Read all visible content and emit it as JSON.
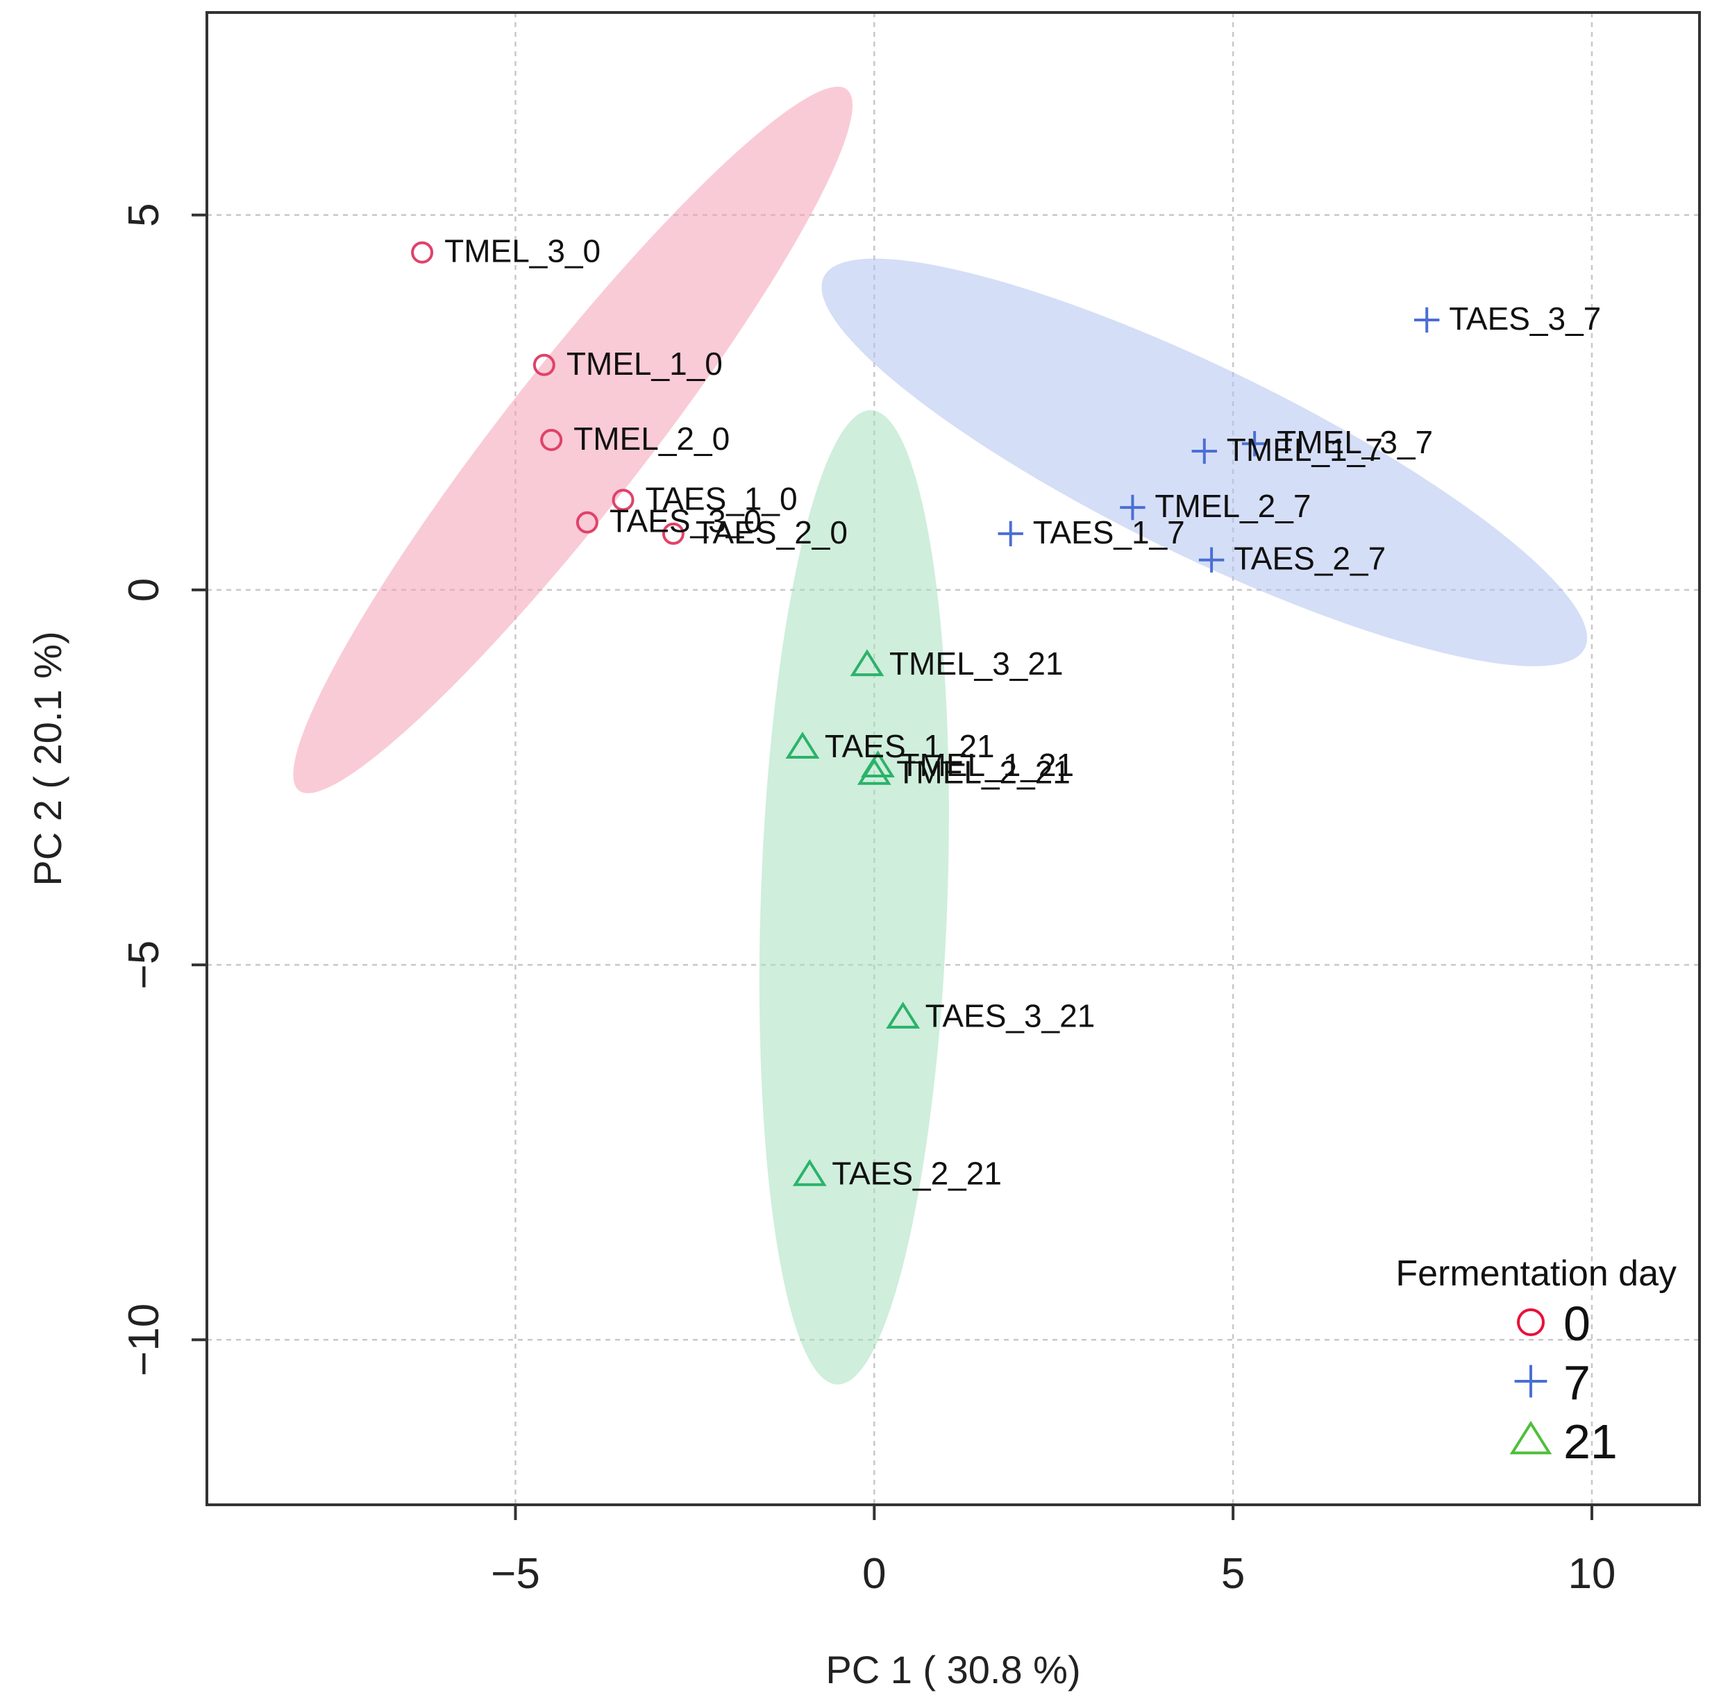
{
  "chart_data": {
    "type": "scatter",
    "title": "",
    "xlabel": "PC 1 ( 30.8 %)",
    "ylabel": "PC 2 ( 20.1 %)",
    "xlim": [
      -9.3,
      11.5
    ],
    "ylim": [
      -12.2,
      7.7
    ],
    "xticks": [
      -5,
      0,
      5,
      10
    ],
    "yticks": [
      5,
      0,
      -5,
      -10
    ],
    "xtick_labels": [
      "−5",
      "0",
      "5",
      "10"
    ],
    "ytick_labels": [
      "5",
      "0",
      "−5",
      "−10"
    ],
    "grid": true,
    "legend": {
      "title": "Fermentation day",
      "position": "bottom-right",
      "entries": [
        {
          "label": "0",
          "marker": "circle",
          "color": "#e8103a"
        },
        {
          "label": "7",
          "marker": "plus",
          "color": "#4a6fd4"
        },
        {
          "label": "21",
          "marker": "triangle",
          "color": "#4fbf3a"
        }
      ]
    },
    "series": [
      {
        "name": "0",
        "marker": "circle",
        "color": "#e0426a",
        "ellipse_color": "#f4a0b4",
        "ellipse": {
          "cx": -4.2,
          "cy": 2.0,
          "rx": 6.2,
          "ry": 0.95,
          "angle_deg": -52
        },
        "points": [
          {
            "label": "TMEL_3_0",
            "x": -6.3,
            "y": 4.5
          },
          {
            "label": "TMEL_1_0",
            "x": -4.6,
            "y": 3.0
          },
          {
            "label": "TMEL_2_0",
            "x": -4.5,
            "y": 2.0
          },
          {
            "label": "TAES_1_0",
            "x": -3.5,
            "y": 1.2
          },
          {
            "label": "TAES_3_0",
            "x": -4.0,
            "y": 0.9
          },
          {
            "label": "TAES_2_0",
            "x": -2.8,
            "y": 0.75
          }
        ]
      },
      {
        "name": "7",
        "marker": "plus",
        "color": "#4a6fd4",
        "ellipse_color": "#b3c2f0",
        "ellipse": {
          "cx": 4.6,
          "cy": 1.7,
          "rx": 5.9,
          "ry": 1.25,
          "angle_deg": 26
        },
        "points": [
          {
            "label": "TAES_3_7",
            "x": 7.7,
            "y": 3.6
          },
          {
            "label": "TMEL_3_7",
            "x": 5.3,
            "y": 1.95
          },
          {
            "label": "TMEL_1_7",
            "x": 4.6,
            "y": 1.85
          },
          {
            "label": "TMEL_2_7",
            "x": 3.6,
            "y": 1.1
          },
          {
            "label": "TAES_1_7",
            "x": 1.9,
            "y": 0.75
          },
          {
            "label": "TAES_2_7",
            "x": 4.7,
            "y": 0.4
          }
        ]
      },
      {
        "name": "21",
        "marker": "triangle",
        "color": "#2ab36a",
        "ellipse_color": "#a8e0bf",
        "ellipse": {
          "cx": -0.28,
          "cy": -4.1,
          "rx": 1.3,
          "ry": 6.5,
          "angle_deg": 2
        },
        "points": [
          {
            "label": "TMEL_3_21",
            "x": -0.1,
            "y": -1.0
          },
          {
            "label": "TAES_1_21",
            "x": -1.0,
            "y": -2.1
          },
          {
            "label": "TMEL_1_21",
            "x": 0.05,
            "y": -2.35
          },
          {
            "label": "TMEL_2_21",
            "x": 0.0,
            "y": -2.45
          },
          {
            "label": "TAES_3_21",
            "x": 0.4,
            "y": -5.7
          },
          {
            "label": "TAES_2_21",
            "x": -0.9,
            "y": -7.8
          }
        ]
      }
    ]
  }
}
